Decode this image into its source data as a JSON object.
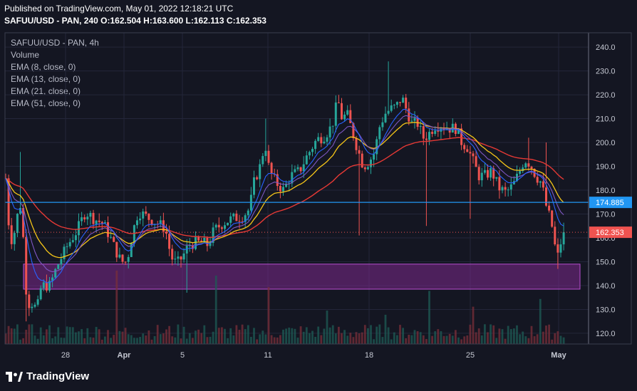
{
  "header": {
    "published": "Published on TradingView.com, May 01, 2022 12:18:21 UTC",
    "ohlc": "SAFUU/USD - PAN, 240 O:162.504 H:163.600 L:162.113 C:162.353"
  },
  "legend": {
    "symbol": "SAFUU/USD - PAN, 4h",
    "volume": "Volume",
    "ema8": "EMA (8, close, 0)",
    "ema13": "EMA (13, close, 0)",
    "ema21": "EMA (21, close, 0)",
    "ema51": "EMA (51, close, 0)"
  },
  "brand": {
    "name": "TradingView"
  },
  "colors": {
    "up": "#26a69a",
    "down": "#ef5350",
    "ema8": "#2962ff",
    "ema13": "#7e57c2",
    "ema21": "#f5c518",
    "ema51": "#e53935",
    "hline": "#2196f3",
    "zone": "#7b2a8c"
  },
  "chart_data": {
    "type": "candlestick",
    "title": "SAFUU/USD - PAN, 4h",
    "y_ticks": [
      120,
      130,
      140,
      150,
      160,
      170,
      180,
      190,
      200,
      210,
      220,
      230,
      240
    ],
    "ylim": [
      115.5,
      246
    ],
    "x_ticks": [
      "28",
      "Apr",
      "5",
      "11",
      "18",
      "25",
      "May"
    ],
    "last_price": "162.353",
    "level_line": "174.885",
    "level_value": 174.885,
    "demand_zone": [
      138.5,
      149
    ],
    "anchors": [
      [
        8,
        185
      ],
      [
        14,
        158
      ],
      [
        20,
        162
      ],
      [
        26,
        172
      ],
      [
        30,
        175
      ],
      [
        34,
        152
      ],
      [
        38,
        132
      ],
      [
        44,
        133
      ],
      [
        52,
        130
      ],
      [
        58,
        140
      ],
      [
        70,
        140
      ],
      [
        80,
        148
      ],
      [
        95,
        157
      ],
      [
        108,
        163
      ],
      [
        120,
        171
      ],
      [
        132,
        168
      ],
      [
        145,
        166
      ],
      [
        155,
        160
      ],
      [
        162,
        155
      ],
      [
        170,
        150
      ],
      [
        178,
        150
      ],
      [
        186,
        162
      ],
      [
        194,
        171
      ],
      [
        200,
        170
      ],
      [
        210,
        168
      ],
      [
        222,
        166
      ],
      [
        232,
        164
      ],
      [
        240,
        152
      ],
      [
        248,
        149
      ],
      [
        256,
        152
      ],
      [
        265,
        157
      ],
      [
        275,
        158
      ],
      [
        285,
        158
      ],
      [
        292,
        157
      ],
      [
        300,
        163
      ],
      [
        312,
        166
      ],
      [
        325,
        168
      ],
      [
        340,
        169
      ],
      [
        350,
        172
      ],
      [
        357,
        184
      ],
      [
        365,
        190
      ],
      [
        372,
        200
      ],
      [
        378,
        188
      ],
      [
        388,
        183
      ],
      [
        398,
        180
      ],
      [
        408,
        186
      ],
      [
        420,
        188
      ],
      [
        432,
        195
      ],
      [
        444,
        201
      ],
      [
        456,
        203
      ],
      [
        466,
        207
      ],
      [
        474,
        218
      ],
      [
        480,
        210
      ],
      [
        487,
        212
      ],
      [
        494,
        205
      ],
      [
        502,
        197
      ],
      [
        510,
        190
      ],
      [
        518,
        192
      ],
      [
        526,
        196
      ],
      [
        532,
        206
      ],
      [
        540,
        212
      ],
      [
        548,
        214
      ],
      [
        556,
        215
      ],
      [
        564,
        219
      ],
      [
        570,
        214
      ],
      [
        578,
        208
      ],
      [
        586,
        208
      ],
      [
        594,
        202
      ],
      [
        600,
        203
      ],
      [
        610,
        207
      ],
      [
        620,
        207
      ],
      [
        630,
        206
      ],
      [
        640,
        206
      ],
      [
        648,
        200
      ],
      [
        656,
        198
      ],
      [
        664,
        192
      ],
      [
        672,
        186
      ],
      [
        680,
        186
      ],
      [
        690,
        188
      ],
      [
        700,
        181
      ],
      [
        710,
        179
      ],
      [
        720,
        182
      ],
      [
        728,
        187
      ],
      [
        736,
        193
      ],
      [
        744,
        191
      ],
      [
        752,
        186
      ],
      [
        760,
        183
      ],
      [
        766,
        174
      ],
      [
        772,
        168
      ],
      [
        777,
        162
      ],
      [
        781,
        150
      ],
      [
        785,
        155
      ],
      [
        789,
        161
      ],
      [
        792,
        162.35
      ]
    ]
  }
}
